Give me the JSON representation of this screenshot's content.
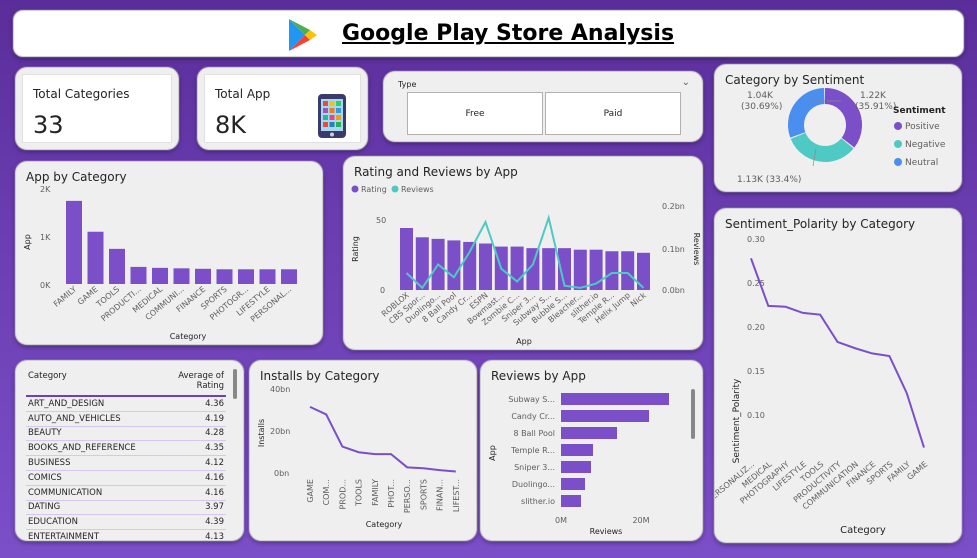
{
  "header": {
    "title": "Google Play Store Analysis",
    "logo_icon": "google-play-icon"
  },
  "kpis": {
    "total_categories": {
      "label": "Total Categories",
      "value": "33"
    },
    "total_app": {
      "label": "Total App",
      "value": "8K",
      "icon": "phone-apps-icon"
    }
  },
  "slicer": {
    "label": "Type",
    "options": [
      "Free",
      "Paid"
    ]
  },
  "sentiment": {
    "title": "Category by Sentiment",
    "legend_title": "Sentiment",
    "slices": [
      {
        "name": "Positive",
        "value": "1.22K",
        "pct": "(35.91%)",
        "share": 35.91,
        "color": "#7b4fc8"
      },
      {
        "name": "Negative",
        "value": "1.13K (33.4%)",
        "pct": "",
        "share": 33.4,
        "color": "#4fc9c4"
      },
      {
        "name": "Neutral",
        "value": "1.04K",
        "pct": "(30.69%)",
        "share": 30.69,
        "color": "#4a8ff0"
      }
    ]
  },
  "app_by_category": {
    "title": "App by Category",
    "ylabel": "App",
    "xlabel": "Category",
    "yticks": [
      "2K",
      "1K",
      "0K"
    ]
  },
  "rating_reviews": {
    "title": "Rating and Reviews by App",
    "legend": [
      "Rating",
      "Reviews"
    ],
    "ylabel_left": "Rating",
    "ylabel_right": "Reviews",
    "xlabel": "App",
    "yticks_left": [
      "50",
      "0"
    ],
    "yticks_right": [
      "0.2bn",
      "0.1bn",
      "0.0bn"
    ]
  },
  "polarity": {
    "title": "Sentiment_Polarity by Category",
    "ylabel": "Sentiment_Polarity",
    "xlabel": "Category",
    "yticks": [
      "0.30",
      "0.25",
      "0.20",
      "0.15",
      "0.10"
    ]
  },
  "table": {
    "headers": [
      "Category",
      "Average of Rating"
    ],
    "rows": [
      [
        "ART_AND_DESIGN",
        "4.36"
      ],
      [
        "AUTO_AND_VEHICLES",
        "4.19"
      ],
      [
        "BEAUTY",
        "4.28"
      ],
      [
        "BOOKS_AND_REFERENCE",
        "4.35"
      ],
      [
        "BUSINESS",
        "4.12"
      ],
      [
        "COMICS",
        "4.16"
      ],
      [
        "COMMUNICATION",
        "4.16"
      ],
      [
        "DATING",
        "3.97"
      ],
      [
        "EDUCATION",
        "4.39"
      ],
      [
        "ENTERTAINMENT",
        "4.13"
      ]
    ]
  },
  "installs": {
    "title": "Installs by Category",
    "ylabel": "Installs",
    "xlabel": "Category",
    "yticks": [
      "40bn",
      "20bn",
      "0bn"
    ]
  },
  "reviews_by_app": {
    "title": "Reviews by App",
    "ylabel": "App",
    "xlabel": "Reviews",
    "xticks": [
      "0M",
      "20M"
    ]
  },
  "chart_data": [
    {
      "type": "bar",
      "title": "App by Category",
      "categories": [
        "FAMILY",
        "GAME",
        "TOOLS",
        "PRODUCTI...",
        "MEDICAL",
        "COMMUNI...",
        "FINANCE",
        "SPORTS",
        "PHOTOGR...",
        "LIFESTYLE",
        "PERSONAL..."
      ],
      "values": [
        1750,
        1100,
        740,
        360,
        340,
        330,
        320,
        310,
        310,
        310,
        310
      ],
      "ylim": [
        0,
        2000
      ],
      "color": "#7b4fc8"
    },
    {
      "type": "bar",
      "title": "Rating and Reviews by App",
      "categories": [
        "ROBLOX",
        "CBS Spor...",
        "Duolingo...",
        "8 Ball Pool",
        "Candy Cr...",
        "ESPN",
        "Bowmast...",
        "Zombie C...",
        "Sniper 3...",
        "Subway S...",
        "Bubble S...",
        "Bleacher...",
        "slither.io",
        "Temple R...",
        "Helix Jump",
        "Nick"
      ],
      "series": [
        {
          "name": "Rating",
          "values": [
            40,
            34,
            33,
            32,
            31,
            30,
            28,
            28,
            27,
            27,
            27,
            26,
            26,
            25,
            25,
            24
          ],
          "ylim": [
            0,
            60
          ],
          "color": "#7b4fc8"
        },
        {
          "name": "Reviews",
          "values": [
            0.04,
            0.005,
            0.06,
            0.03,
            0.09,
            0.16,
            0.05,
            0.02,
            0.06,
            0.17,
            0.01,
            0.005,
            0.015,
            0.04,
            0.04,
            0.005
          ],
          "ylim": [
            0,
            0.2
          ],
          "color": "#4fc9c4",
          "unit": "bn"
        }
      ]
    },
    {
      "type": "line",
      "title": "Sentiment_Polarity by Category",
      "categories": [
        "PERSONALIZ...",
        "MEDICAL",
        "PHOTOGRAPHY",
        "LIFESTYLE",
        "TOOLS",
        "PRODUCTIVITY",
        "COMMUNICATION",
        "FINANCE",
        "SPORTS",
        "FAMILY",
        "GAME"
      ],
      "values": [
        0.278,
        0.224,
        0.223,
        0.216,
        0.214,
        0.183,
        0.176,
        0.17,
        0.167,
        0.125,
        0.063
      ],
      "ylim": [
        0.05,
        0.3
      ],
      "color": "#7b4fc8"
    },
    {
      "type": "line",
      "title": "Installs by Category",
      "categories": [
        "GAME",
        "COM...",
        "PROD...",
        "TOOLS",
        "FAMILY",
        "PHOT...",
        "PERSO...",
        "SPORTS",
        "FINAN...",
        "LIFEST..."
      ],
      "values": [
        35,
        31,
        14,
        11,
        10,
        10,
        3,
        2.5,
        1.5,
        0.8
      ],
      "ylim": [
        0,
        45
      ],
      "unit": "bn",
      "color": "#7b4fc8"
    },
    {
      "type": "bar",
      "title": "Reviews by App",
      "categories": [
        "Subway S...",
        "Candy Cr...",
        "8 Ball Pool",
        "Temple R...",
        "Sniper 3...",
        "Duolingo...",
        "slither.io"
      ],
      "values": [
        27,
        22,
        14,
        8,
        7.5,
        6,
        5
      ],
      "xlim": [
        0,
        30
      ],
      "unit": "M",
      "color": "#7b4fc8"
    }
  ]
}
